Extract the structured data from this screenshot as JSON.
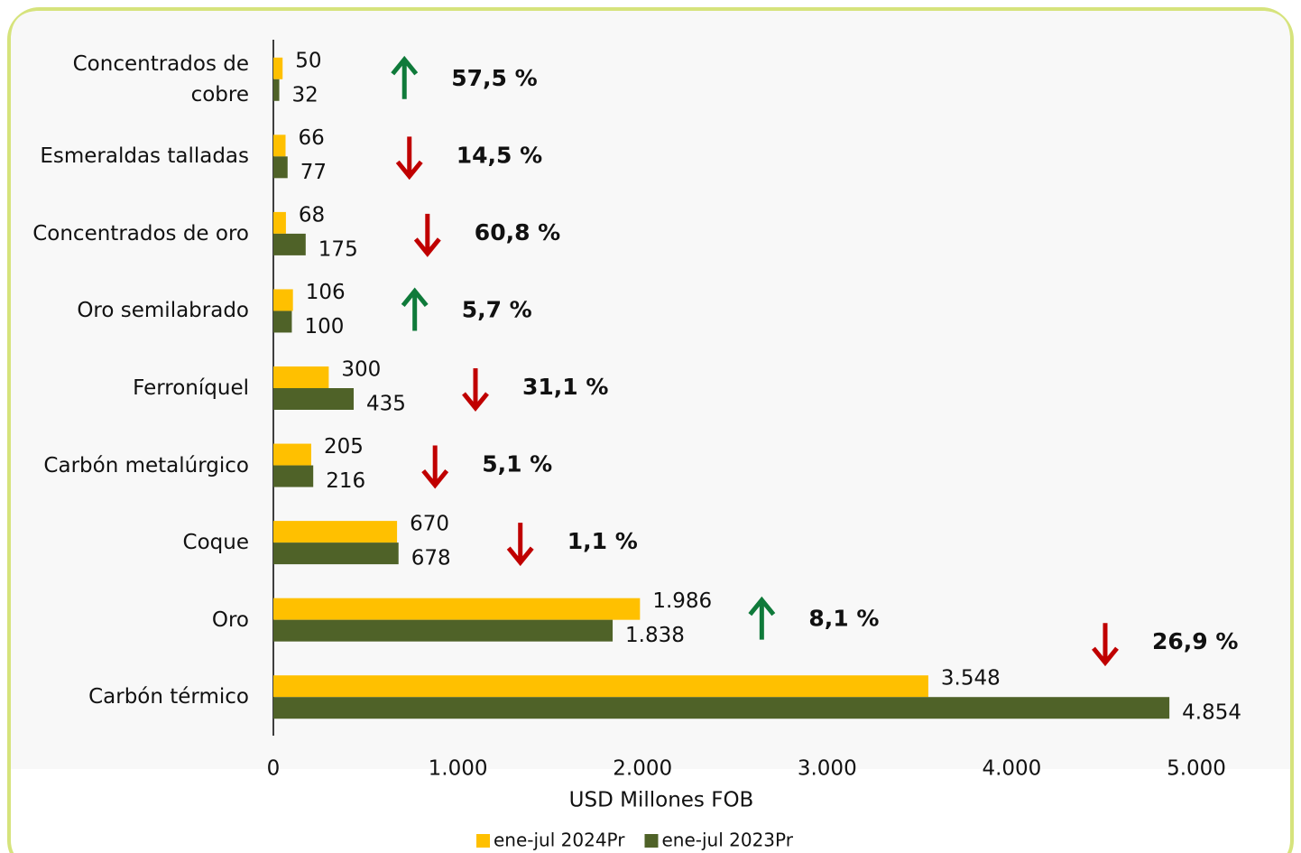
{
  "chart_data": {
    "type": "barh",
    "categories": [
      "Concentrados de cobre",
      "Esmeraldas talladas",
      "Concentrados de oro",
      "Oro semilabrado",
      "Ferroníquel",
      "Carbón metalúrgico",
      "Coque",
      "Oro",
      "Carbón térmico"
    ],
    "series": [
      {
        "name": "ene-jul 2024Pr",
        "color": "#ffc000",
        "values": [
          50,
          66,
          68,
          106,
          300,
          205,
          670,
          1986,
          3548
        ],
        "value_labels": [
          "50",
          "66",
          "68",
          "106",
          "300",
          "205",
          "670",
          "1.986",
          "3.548"
        ]
      },
      {
        "name": "ene-jul 2023Pr",
        "color": "#4f6228",
        "values": [
          32,
          77,
          175,
          100,
          435,
          216,
          678,
          1838,
          4854
        ],
        "value_labels": [
          "32",
          "77",
          "175",
          "100",
          "435",
          "216",
          "678",
          "1.838",
          "4.854"
        ]
      }
    ],
    "annotations": [
      {
        "text": "57,5 %",
        "direction": "up",
        "color": "#00b050"
      },
      {
        "text": "14,5 %",
        "direction": "down",
        "color": "#ff0000"
      },
      {
        "text": "60,8 %",
        "direction": "down",
        "color": "#ff0000"
      },
      {
        "text": "5,7 %",
        "direction": "up",
        "color": "#00b050"
      },
      {
        "text": "31,1 %",
        "direction": "down",
        "color": "#ff0000"
      },
      {
        "text": "5,1 %",
        "direction": "down",
        "color": "#ff0000"
      },
      {
        "text": "1,1 %",
        "direction": "down",
        "color": "#ff0000"
      },
      {
        "text": "8,1 %",
        "direction": "up",
        "color": "#00b050"
      },
      {
        "text": "26,9 %",
        "direction": "down",
        "color": "#ff0000"
      }
    ],
    "xlabel": "USD Millones FOB",
    "xlim": [
      0,
      5000
    ],
    "xticks": [
      0,
      {
        "value": 1000,
        "label": "1.000"
      },
      {
        "value": 2000,
        "label": "2.000"
      },
      {
        "value": 3000,
        "label": "3.000"
      },
      {
        "value": 4000,
        "label": "4.000"
      },
      {
        "value": 5000,
        "label": "5.000"
      }
    ],
    "grid": false,
    "legend": "bottom"
  }
}
